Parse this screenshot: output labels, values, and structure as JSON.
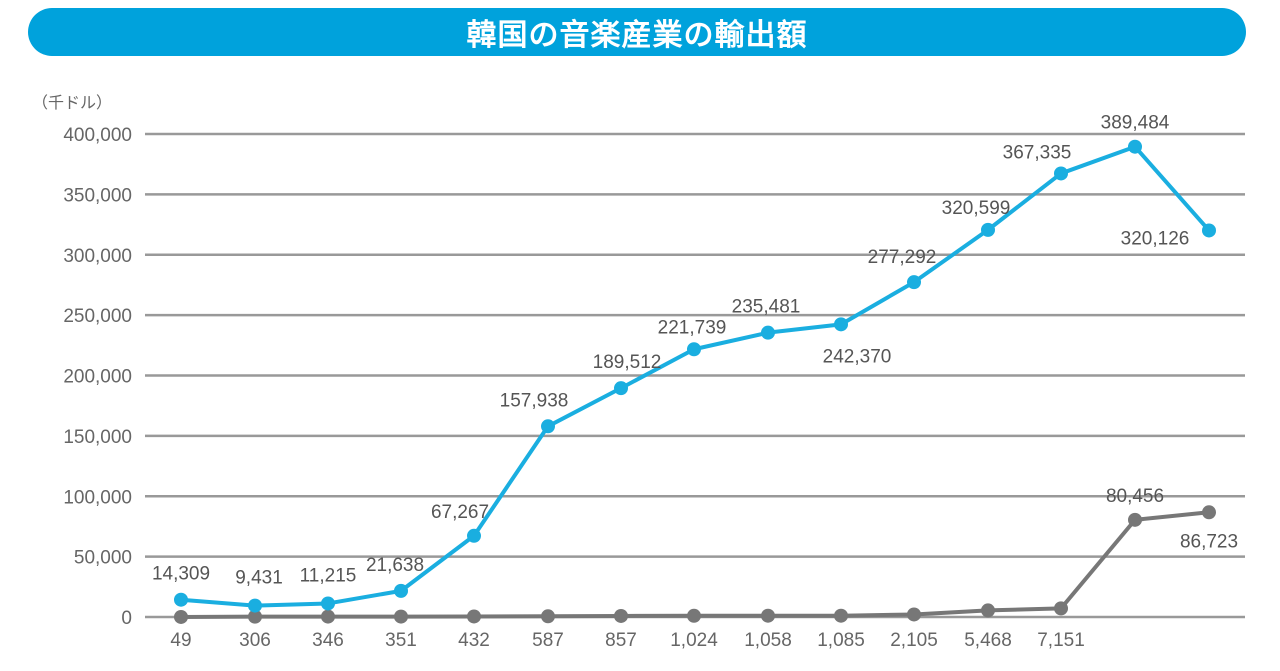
{
  "title": "韓国の音楽産業の輸出額",
  "unit_label": "（千ドル）",
  "colors": {
    "title_bg": "#00a2dc",
    "series_blue": "#1aaee0",
    "series_gray": "#777777",
    "grid": "#999999"
  },
  "chart_data": {
    "type": "line",
    "title": "韓国の音楽産業の輸出額",
    "ylabel": "（千ドル）",
    "xlabel": "",
    "ylim": [
      0,
      400000
    ],
    "yticks": [
      "400,000",
      "350,000",
      "300,000",
      "250,000",
      "200,000",
      "150,000",
      "100,000",
      "50,000",
      "0"
    ],
    "grid": true,
    "legend": "none",
    "x_tick_labels": [
      "49",
      "306",
      "346",
      "351",
      "432",
      "587",
      "857",
      "1,024",
      "1,058",
      "1,085",
      "2,105",
      "5,468",
      "7,151",
      "",
      ""
    ],
    "series": [
      {
        "name": "blue-series",
        "color": "#1aaee0",
        "values": [
          14309,
          9431,
          11215,
          21638,
          67267,
          157938,
          189512,
          221739,
          235481,
          242370,
          277292,
          320599,
          367335,
          389484,
          320126
        ],
        "labels": [
          "14,309",
          "9,431",
          "11,215",
          "21,638",
          "67,267",
          "157,938",
          "189,512",
          "221,739",
          "235,481",
          "242,370",
          "277,292",
          "320,599",
          "367,335",
          "389,484",
          "320,126"
        ]
      },
      {
        "name": "gray-series",
        "color": "#777777",
        "values": [
          49,
          306,
          346,
          351,
          432,
          587,
          857,
          1024,
          1058,
          1085,
          2105,
          5468,
          7151,
          80456,
          86723
        ],
        "labels": [
          "",
          "",
          "",
          "",
          "",
          "",
          "",
          "",
          "",
          "",
          "",
          "",
          "",
          "80,456",
          "86,723"
        ]
      }
    ]
  }
}
